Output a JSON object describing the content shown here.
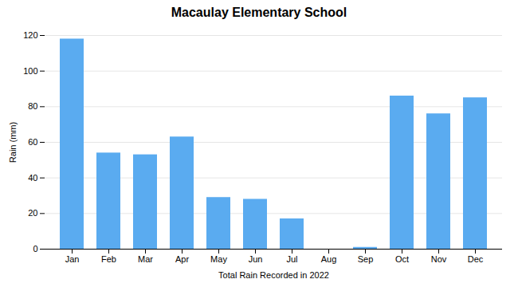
{
  "chart_data": {
    "type": "bar",
    "title": "Macaulay Elementary School",
    "xlabel": "Total Rain Recorded in 2022",
    "ylabel": "Rain (mm)",
    "categories": [
      "Jan",
      "Feb",
      "Mar",
      "Apr",
      "May",
      "Jun",
      "Jul",
      "Aug",
      "Sep",
      "Oct",
      "Nov",
      "Dec"
    ],
    "values": [
      118,
      54,
      53,
      63,
      29,
      28,
      17,
      0,
      1,
      86,
      76,
      85
    ],
    "color": "#5aabf0",
    "ylim": [
      0,
      120
    ],
    "yticks": [
      0,
      20,
      40,
      60,
      80,
      100,
      120
    ],
    "grid": true
  }
}
